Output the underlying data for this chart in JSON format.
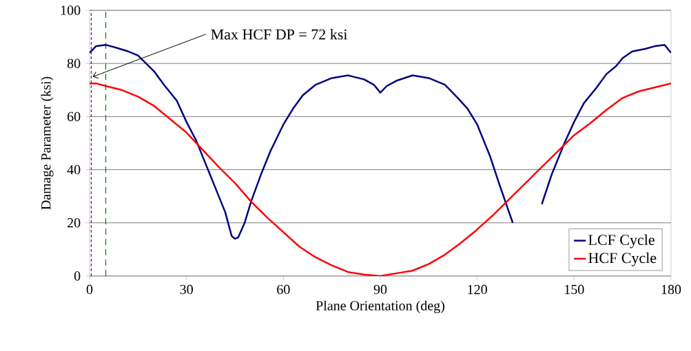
{
  "chart_data": {
    "type": "line",
    "xlabel": "Plane Orientation (deg)",
    "ylabel": "Damage Parameter (ksi)",
    "xlim": [
      0,
      180
    ],
    "xticks": [
      0,
      30,
      60,
      90,
      120,
      150,
      180
    ],
    "ylim": [
      0,
      100
    ],
    "yticks": [
      0,
      20,
      40,
      60,
      80,
      100
    ],
    "grid": "y",
    "legend": "bottom right",
    "marker": "none",
    "line_style": "solid",
    "series": [
      {
        "name": "LCF Cycle",
        "color": "#000080",
        "x": [
          0,
          2,
          5,
          8,
          12,
          15,
          20,
          23,
          27,
          30,
          33,
          36,
          39,
          42,
          44,
          45,
          46,
          48,
          50,
          53,
          56,
          60,
          63,
          66,
          70,
          75,
          80,
          85,
          88,
          90,
          92,
          95,
          100,
          105,
          110,
          114,
          117,
          120,
          124,
          127,
          131,
          134,
          140,
          143,
          147,
          150,
          153,
          157,
          160,
          163,
          165,
          168,
          172,
          175,
          178,
          180
        ],
        "values": [
          84,
          86.5,
          87,
          86,
          84.5,
          83,
          77,
          72,
          66,
          58,
          51,
          42,
          33,
          24,
          15,
          14,
          14.5,
          20,
          28,
          38,
          47,
          57,
          63,
          68,
          72,
          74.5,
          75.5,
          74,
          72,
          69,
          71.5,
          73.5,
          75.5,
          74.5,
          72,
          67,
          63,
          57,
          45,
          34,
          20,
          null,
          27,
          38,
          50,
          58,
          65,
          71,
          76,
          79,
          82,
          84.5,
          85.5,
          86.5,
          87,
          84
        ]
      },
      {
        "name": "HCF Cycle",
        "color": "#ff0000",
        "x": [
          0,
          2,
          5,
          10,
          15,
          20,
          25,
          30,
          35,
          40,
          45,
          50,
          55,
          60,
          65,
          70,
          75,
          80,
          85,
          90,
          95,
          100,
          105,
          110,
          115,
          120,
          125,
          130,
          135,
          140,
          145,
          150,
          155,
          160,
          165,
          170,
          175,
          180
        ],
        "values": [
          72.5,
          72.5,
          71.5,
          70,
          67.5,
          64,
          59,
          54,
          47.5,
          41,
          35,
          28,
          22,
          16.5,
          11,
          7,
          4,
          1.5,
          0.5,
          0,
          1,
          2,
          4.5,
          8,
          12.5,
          17.5,
          23,
          29,
          35,
          41,
          47,
          53,
          57.5,
          62.5,
          67,
          69.5,
          71,
          72.5
        ]
      }
    ],
    "ref_lines": [
      {
        "axis": "x",
        "value": 0.5,
        "color": "#800080",
        "line_style": "dotted"
      },
      {
        "axis": "x",
        "value": 5,
        "color": "#008000",
        "line_style": "dashed"
      }
    ],
    "annotations": [
      {
        "text": "Max HCF DP = 72 ksi",
        "x": 1,
        "y": 75
      }
    ]
  }
}
